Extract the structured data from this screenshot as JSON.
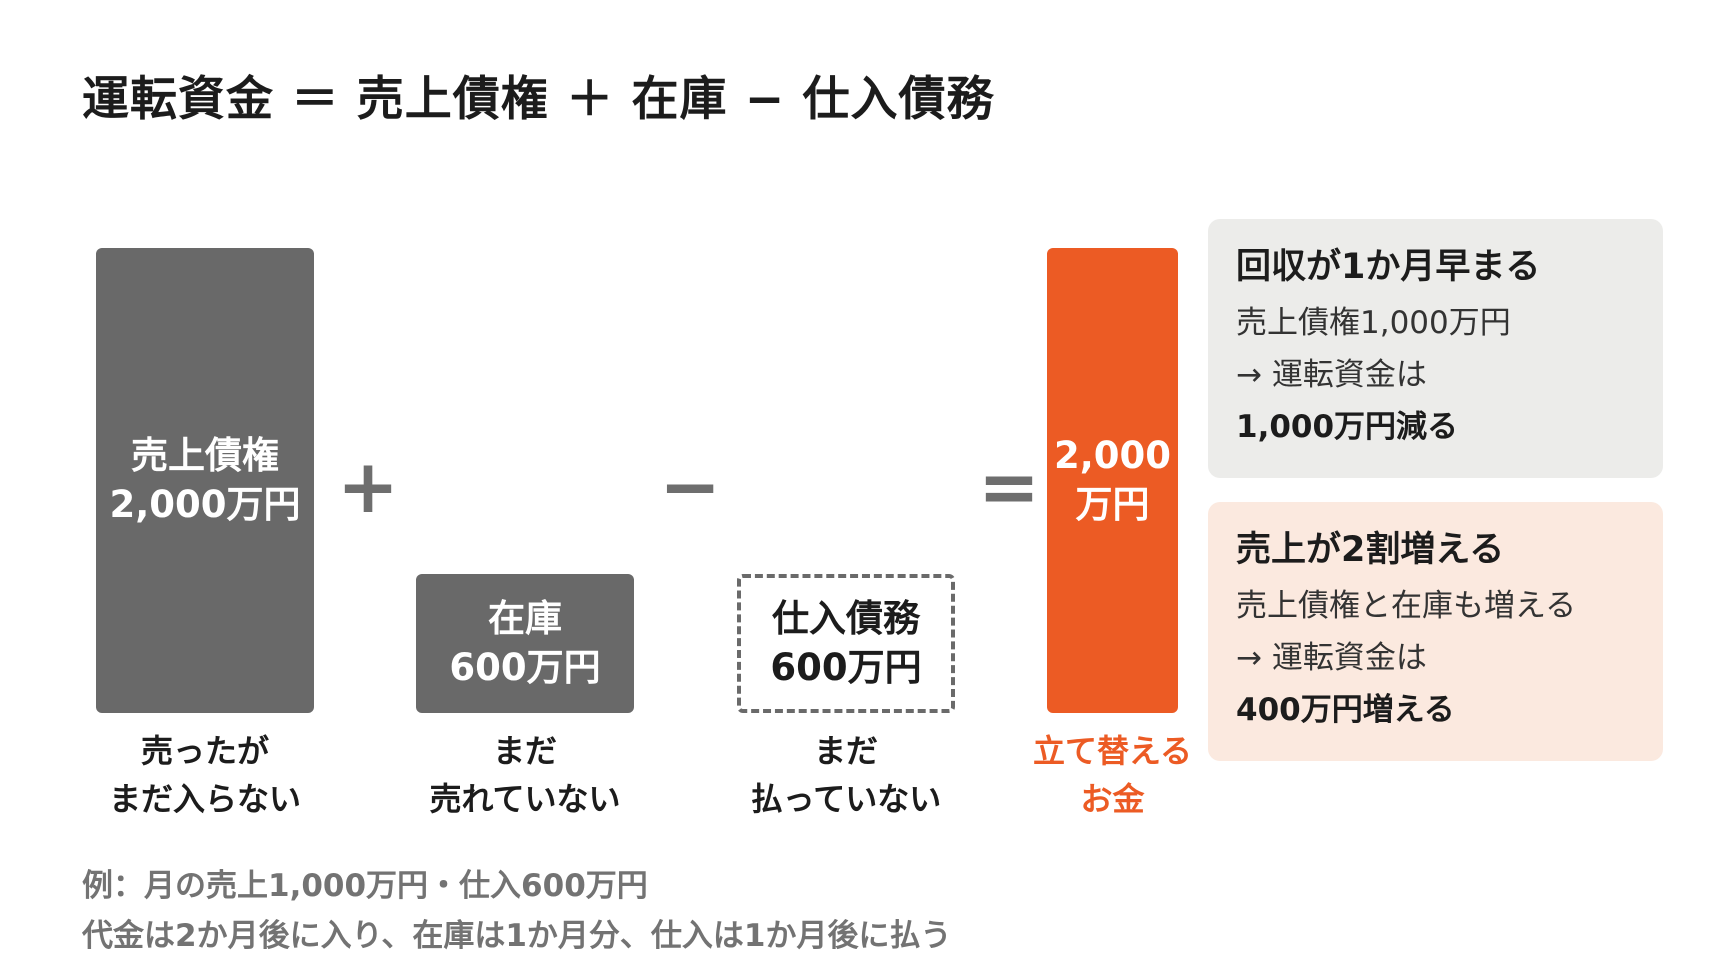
{
  "title": "運転資金 ＝ 売上債権 ＋ 在庫 − 仕入債務",
  "operators": {
    "plus": "+",
    "minus": "−",
    "equals": "="
  },
  "bars": {
    "receivables": {
      "label": "売上債権",
      "amount": "2,000万円"
    },
    "inventory": {
      "label": "在庫",
      "amount": "600万円"
    },
    "payables": {
      "label": "仕入債務",
      "amount": "600万円"
    },
    "result": {
      "amount_line1": "2,000",
      "amount_line2": "万円"
    }
  },
  "captions": {
    "receivables": [
      "売ったが",
      "まだ入らない"
    ],
    "inventory": [
      "まだ",
      "売れていない"
    ],
    "payables": [
      "まだ",
      "払っていない"
    ],
    "result": [
      "立て替える",
      "お金"
    ]
  },
  "panels": [
    {
      "heading": "回収が1か月早まる",
      "line1": "売上債権1,000万円",
      "line2": "→ 運転資金は",
      "line3": "1,000万円減る"
    },
    {
      "heading": "売上が2割増える",
      "line1": "売上債権と在庫も増える",
      "line2": "→ 運転資金は",
      "line3": "400万円増える"
    }
  ],
  "footnotes": [
    "例：月の売上1,000万円・仕入600万円",
    "代金は2か月後に入り、在庫は1か月分、仕入は1か月後に払う"
  ],
  "colors": {
    "bar_gray": "#696969",
    "accent_orange": "#ec5b24",
    "panel_gray": "#ececea",
    "panel_peach": "#fbe9df"
  }
}
